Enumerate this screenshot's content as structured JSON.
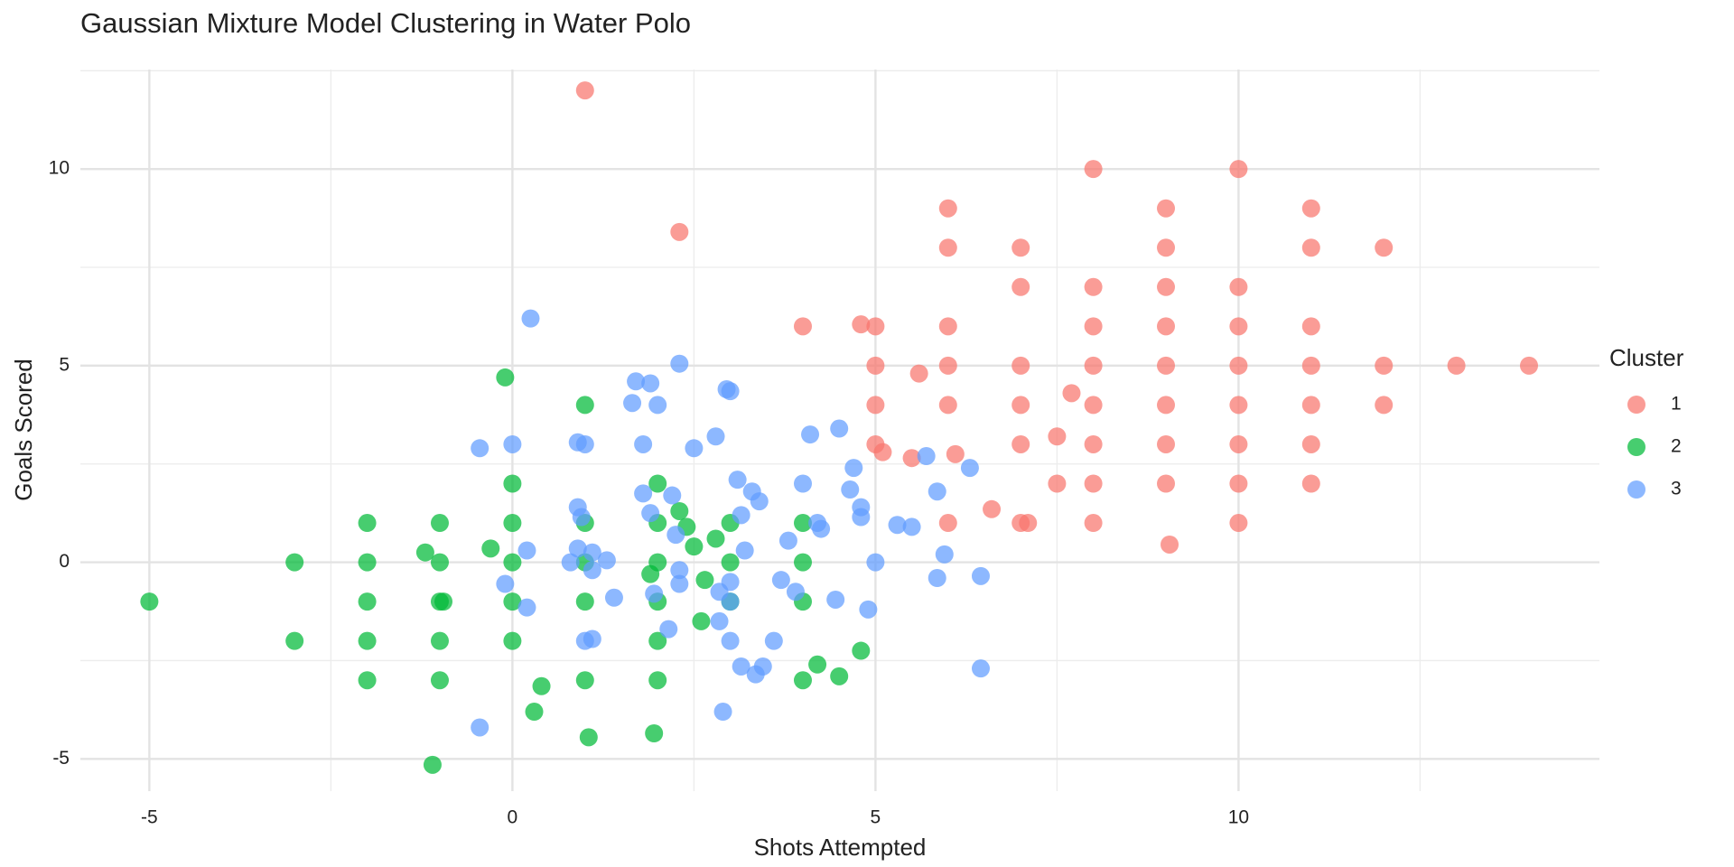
{
  "chart_data": {
    "type": "scatter",
    "title": "Gaussian Mixture Model Clustering in Water Polo",
    "x_label": "Shots Attempted",
    "y_label": "Goals Scored",
    "legend_title": "Cluster",
    "legend": "right",
    "grid": true,
    "xlim": [
      -5.95,
      14.97
    ],
    "ylim": [
      -5.82,
      12.53
    ],
    "xticks": [
      -5,
      0,
      5,
      10
    ],
    "yticks": [
      -5,
      0,
      5,
      10
    ],
    "series": [
      {
        "name": "1",
        "color": "#F8766D",
        "x": [
          1,
          2.3,
          8,
          10,
          6,
          9,
          11,
          6,
          7,
          9,
          11,
          12,
          7,
          8,
          9,
          10,
          4,
          4.8,
          5,
          6,
          8,
          9,
          10,
          11,
          5,
          5.6,
          6,
          7,
          8,
          9,
          10,
          11,
          12,
          13,
          14,
          5,
          6,
          7,
          7.7,
          8,
          9,
          10,
          11,
          12,
          7.5,
          5,
          5.1,
          5.5,
          6.1,
          7,
          8,
          9,
          10,
          11,
          7.5,
          8,
          9,
          10,
          11,
          6.6,
          6,
          7,
          7.1,
          8,
          10,
          9.05
        ],
        "y": [
          12,
          8.4,
          10,
          10,
          9,
          9,
          9,
          8,
          8,
          8,
          8,
          8,
          7,
          7,
          7,
          7,
          6,
          6.05,
          6,
          6,
          6,
          6,
          6,
          6,
          5,
          4.8,
          5,
          5,
          5,
          5,
          5,
          5,
          5,
          5,
          5,
          4,
          4,
          4,
          4.3,
          4,
          4,
          4,
          4,
          4,
          3.2,
          3,
          2.8,
          2.65,
          2.75,
          3,
          3,
          3,
          3,
          3,
          2,
          2,
          2,
          2,
          2,
          1.35,
          1,
          1,
          1,
          1,
          1,
          0.45
        ]
      },
      {
        "name": "2",
        "color": "#00BA38",
        "x": [
          -0.1,
          1,
          0,
          2,
          -3,
          -2,
          -1,
          0,
          1,
          2,
          3,
          4,
          2.3,
          2.4,
          -2,
          -1,
          0,
          1,
          2,
          3,
          4,
          -1.2,
          -0.3,
          2.8,
          2.5,
          1.9,
          -5,
          -2,
          -1,
          -0.95,
          0,
          1,
          2,
          3,
          4,
          2.65,
          2.6,
          -3,
          -2,
          -1,
          0,
          2,
          4.8,
          -2,
          -1,
          1,
          2,
          4,
          4.2,
          4.5,
          0.4,
          0.3,
          1.05,
          1.95,
          -1.1
        ],
        "y": [
          4.7,
          4,
          2,
          2,
          0,
          1,
          1,
          1,
          1,
          1,
          1,
          1,
          1.3,
          0.9,
          0,
          0,
          0,
          0,
          0,
          0,
          0,
          0.25,
          0.35,
          0.6,
          0.4,
          -0.3,
          -1,
          -1,
          -1,
          -1,
          -1,
          -1,
          -1,
          -1,
          -1,
          -0.45,
          -1.5,
          -2,
          -2,
          -2,
          -2,
          -2,
          -2.25,
          -3,
          -3,
          -3,
          -3,
          -3,
          -2.6,
          -2.9,
          -3.15,
          -3.8,
          -4.45,
          -4.35,
          -5.15
        ]
      },
      {
        "name": "3",
        "color": "#619CFF",
        "x": [
          0.25,
          2.3,
          1.7,
          1.9,
          1.65,
          2,
          2.95,
          3,
          -0.45,
          0,
          0.9,
          1,
          1.8,
          2.5,
          2.8,
          4.1,
          4.5,
          4.7,
          5.7,
          6.3,
          3.1,
          4,
          4.65,
          5.85,
          1.8,
          2.2,
          3.3,
          3.4,
          0.9,
          0.95,
          1.9,
          3.15,
          4.8,
          4.8,
          4.2,
          4.25,
          2.25,
          3.8,
          5.3,
          5.5,
          0.2,
          0.9,
          1.1,
          3.2,
          5.95,
          0.8,
          1.3,
          5,
          1.1,
          2.3,
          2.3,
          -0.1,
          3,
          1.95,
          2.85,
          3.7,
          3.9,
          5.85,
          6.45,
          0.2,
          1.4,
          3,
          4.45,
          4.9,
          2.85,
          2.15,
          1,
          1.1,
          3,
          3.6,
          3.15,
          3.35,
          3.45,
          6.45,
          2.9,
          -0.45
        ],
        "y": [
          6.2,
          5.05,
          4.6,
          4.55,
          4.05,
          4,
          4.4,
          4.35,
          2.9,
          3,
          3.05,
          3,
          3,
          2.9,
          3.2,
          3.25,
          3.4,
          2.4,
          2.7,
          2.4,
          2.1,
          2,
          1.85,
          1.8,
          1.75,
          1.7,
          1.8,
          1.55,
          1.4,
          1.15,
          1.25,
          1.2,
          1.4,
          1.15,
          1,
          0.85,
          0.7,
          0.55,
          0.95,
          0.9,
          0.3,
          0.35,
          0.25,
          0.3,
          0.2,
          0,
          0.05,
          0,
          -0.2,
          -0.2,
          -0.55,
          -0.55,
          -0.5,
          -0.8,
          -0.75,
          -0.45,
          -0.75,
          -0.4,
          -0.35,
          -1.15,
          -0.9,
          -1,
          -0.95,
          -1.2,
          -1.5,
          -1.7,
          -2,
          -1.95,
          -2,
          -2,
          -2.65,
          -2.85,
          -2.65,
          -2.7,
          -3.8,
          -4.2
        ]
      }
    ]
  }
}
